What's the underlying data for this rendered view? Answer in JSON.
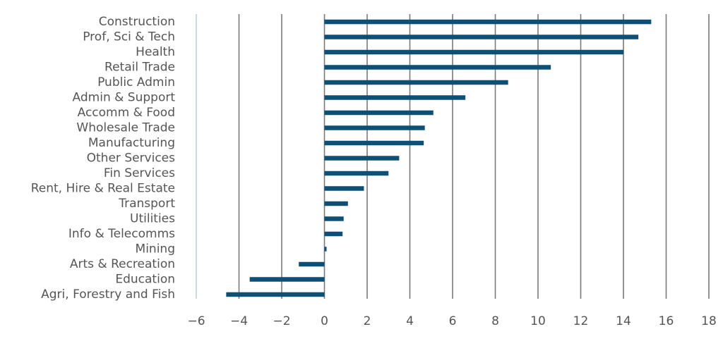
{
  "chart_data": {
    "type": "bar",
    "orientation": "horizontal",
    "title": "",
    "xlabel": "",
    "ylabel": "",
    "categories": [
      "Construction",
      "Prof, Sci & Tech",
      "Health",
      "Retail Trade",
      "Public Admin",
      "Admin & Support",
      "Accomm & Food",
      "Wholesale Trade",
      "Manufacturing",
      "Other Services",
      "Fin Services",
      "Rent, Hire & Real Estate",
      "Transport",
      "Utilities",
      "Info & Telecomms",
      "Mining",
      "Arts & Recreation",
      "Education",
      "Agri, Forestry and Fish"
    ],
    "values": [
      15.3,
      14.7,
      14.0,
      10.6,
      8.6,
      6.6,
      5.1,
      4.7,
      4.65,
      3.5,
      3.0,
      1.85,
      1.1,
      0.9,
      0.85,
      0.1,
      -1.2,
      -3.5,
      -4.6
    ],
    "xlim": [
      -6,
      18
    ],
    "xticks": [
      "−6",
      "−4",
      "−2",
      "0",
      "2",
      "4",
      "6",
      "8",
      "10",
      "12",
      "14",
      "16",
      "18"
    ],
    "grid": "vertical",
    "legend": "none",
    "colors": {
      "bar": "#0d4f75",
      "grid": "#7a7a7a",
      "axis": "#b9cfe3",
      "text": "#555555"
    }
  }
}
